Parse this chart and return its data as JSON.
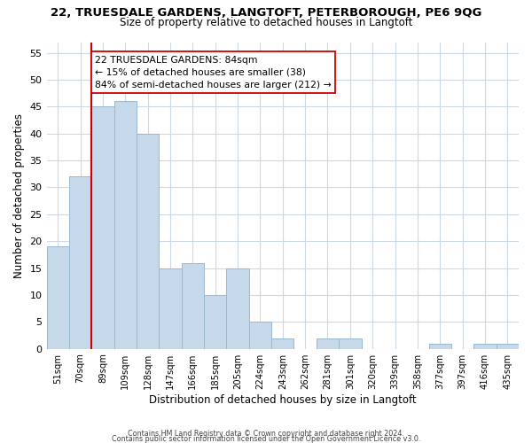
{
  "title": "22, TRUESDALE GARDENS, LANGTOFT, PETERBOROUGH, PE6 9QG",
  "subtitle": "Size of property relative to detached houses in Langtoft",
  "xlabel": "Distribution of detached houses by size in Langtoft",
  "ylabel": "Number of detached properties",
  "bar_labels": [
    "51sqm",
    "70sqm",
    "89sqm",
    "109sqm",
    "128sqm",
    "147sqm",
    "166sqm",
    "185sqm",
    "205sqm",
    "224sqm",
    "243sqm",
    "262sqm",
    "281sqm",
    "301sqm",
    "320sqm",
    "339sqm",
    "358sqm",
    "377sqm",
    "397sqm",
    "416sqm",
    "435sqm"
  ],
  "bar_values": [
    19,
    32,
    45,
    46,
    40,
    15,
    16,
    10,
    15,
    5,
    2,
    0,
    2,
    2,
    0,
    0,
    0,
    1,
    0,
    1,
    1
  ],
  "bar_color": "#c5d9ea",
  "bar_edge_color": "#9ab8d0",
  "reference_line_index": 2,
  "reference_line_color": "#cc0000",
  "ylim": [
    0,
    57
  ],
  "yticks": [
    0,
    5,
    10,
    15,
    20,
    25,
    30,
    35,
    40,
    45,
    50,
    55
  ],
  "annotation_text": "22 TRUESDALE GARDENS: 84sqm\n← 15% of detached houses are smaller (38)\n84% of semi-detached houses are larger (212) →",
  "annotation_box_color": "#ffffff",
  "annotation_box_edge_color": "#cc0000",
  "footer_line1": "Contains HM Land Registry data © Crown copyright and database right 2024.",
  "footer_line2": "Contains public sector information licensed under the Open Government Licence v3.0.",
  "background_color": "#ffffff",
  "grid_color": "#ccd9e5"
}
